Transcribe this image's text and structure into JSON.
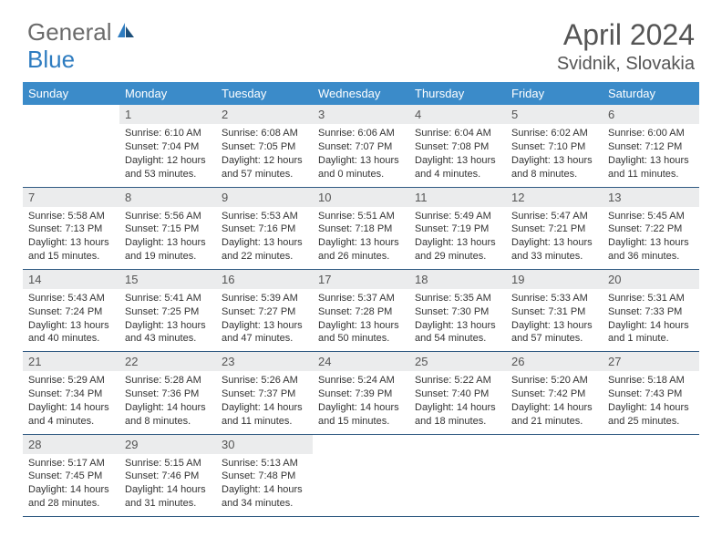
{
  "logo": {
    "text_gray": "General",
    "text_blue": "Blue"
  },
  "header": {
    "title": "April 2024",
    "location": "Svidnik, Slovakia"
  },
  "colors": {
    "header_bg": "#3b8bc9",
    "header_text": "#ffffff",
    "daynum_bg": "#ebeced",
    "border": "#305a82",
    "text": "#333333",
    "title_text": "#555555"
  },
  "day_names": [
    "Sunday",
    "Monday",
    "Tuesday",
    "Wednesday",
    "Thursday",
    "Friday",
    "Saturday"
  ],
  "weeks": [
    [
      {
        "empty": true
      },
      {
        "n": "1",
        "sr": "Sunrise: 6:10 AM",
        "ss": "Sunset: 7:04 PM",
        "dl": "Daylight: 12 hours and 53 minutes."
      },
      {
        "n": "2",
        "sr": "Sunrise: 6:08 AM",
        "ss": "Sunset: 7:05 PM",
        "dl": "Daylight: 12 hours and 57 minutes."
      },
      {
        "n": "3",
        "sr": "Sunrise: 6:06 AM",
        "ss": "Sunset: 7:07 PM",
        "dl": "Daylight: 13 hours and 0 minutes."
      },
      {
        "n": "4",
        "sr": "Sunrise: 6:04 AM",
        "ss": "Sunset: 7:08 PM",
        "dl": "Daylight: 13 hours and 4 minutes."
      },
      {
        "n": "5",
        "sr": "Sunrise: 6:02 AM",
        "ss": "Sunset: 7:10 PM",
        "dl": "Daylight: 13 hours and 8 minutes."
      },
      {
        "n": "6",
        "sr": "Sunrise: 6:00 AM",
        "ss": "Sunset: 7:12 PM",
        "dl": "Daylight: 13 hours and 11 minutes."
      }
    ],
    [
      {
        "n": "7",
        "sr": "Sunrise: 5:58 AM",
        "ss": "Sunset: 7:13 PM",
        "dl": "Daylight: 13 hours and 15 minutes."
      },
      {
        "n": "8",
        "sr": "Sunrise: 5:56 AM",
        "ss": "Sunset: 7:15 PM",
        "dl": "Daylight: 13 hours and 19 minutes."
      },
      {
        "n": "9",
        "sr": "Sunrise: 5:53 AM",
        "ss": "Sunset: 7:16 PM",
        "dl": "Daylight: 13 hours and 22 minutes."
      },
      {
        "n": "10",
        "sr": "Sunrise: 5:51 AM",
        "ss": "Sunset: 7:18 PM",
        "dl": "Daylight: 13 hours and 26 minutes."
      },
      {
        "n": "11",
        "sr": "Sunrise: 5:49 AM",
        "ss": "Sunset: 7:19 PM",
        "dl": "Daylight: 13 hours and 29 minutes."
      },
      {
        "n": "12",
        "sr": "Sunrise: 5:47 AM",
        "ss": "Sunset: 7:21 PM",
        "dl": "Daylight: 13 hours and 33 minutes."
      },
      {
        "n": "13",
        "sr": "Sunrise: 5:45 AM",
        "ss": "Sunset: 7:22 PM",
        "dl": "Daylight: 13 hours and 36 minutes."
      }
    ],
    [
      {
        "n": "14",
        "sr": "Sunrise: 5:43 AM",
        "ss": "Sunset: 7:24 PM",
        "dl": "Daylight: 13 hours and 40 minutes."
      },
      {
        "n": "15",
        "sr": "Sunrise: 5:41 AM",
        "ss": "Sunset: 7:25 PM",
        "dl": "Daylight: 13 hours and 43 minutes."
      },
      {
        "n": "16",
        "sr": "Sunrise: 5:39 AM",
        "ss": "Sunset: 7:27 PM",
        "dl": "Daylight: 13 hours and 47 minutes."
      },
      {
        "n": "17",
        "sr": "Sunrise: 5:37 AM",
        "ss": "Sunset: 7:28 PM",
        "dl": "Daylight: 13 hours and 50 minutes."
      },
      {
        "n": "18",
        "sr": "Sunrise: 5:35 AM",
        "ss": "Sunset: 7:30 PM",
        "dl": "Daylight: 13 hours and 54 minutes."
      },
      {
        "n": "19",
        "sr": "Sunrise: 5:33 AM",
        "ss": "Sunset: 7:31 PM",
        "dl": "Daylight: 13 hours and 57 minutes."
      },
      {
        "n": "20",
        "sr": "Sunrise: 5:31 AM",
        "ss": "Sunset: 7:33 PM",
        "dl": "Daylight: 14 hours and 1 minute."
      }
    ],
    [
      {
        "n": "21",
        "sr": "Sunrise: 5:29 AM",
        "ss": "Sunset: 7:34 PM",
        "dl": "Daylight: 14 hours and 4 minutes."
      },
      {
        "n": "22",
        "sr": "Sunrise: 5:28 AM",
        "ss": "Sunset: 7:36 PM",
        "dl": "Daylight: 14 hours and 8 minutes."
      },
      {
        "n": "23",
        "sr": "Sunrise: 5:26 AM",
        "ss": "Sunset: 7:37 PM",
        "dl": "Daylight: 14 hours and 11 minutes."
      },
      {
        "n": "24",
        "sr": "Sunrise: 5:24 AM",
        "ss": "Sunset: 7:39 PM",
        "dl": "Daylight: 14 hours and 15 minutes."
      },
      {
        "n": "25",
        "sr": "Sunrise: 5:22 AM",
        "ss": "Sunset: 7:40 PM",
        "dl": "Daylight: 14 hours and 18 minutes."
      },
      {
        "n": "26",
        "sr": "Sunrise: 5:20 AM",
        "ss": "Sunset: 7:42 PM",
        "dl": "Daylight: 14 hours and 21 minutes."
      },
      {
        "n": "27",
        "sr": "Sunrise: 5:18 AM",
        "ss": "Sunset: 7:43 PM",
        "dl": "Daylight: 14 hours and 25 minutes."
      }
    ],
    [
      {
        "n": "28",
        "sr": "Sunrise: 5:17 AM",
        "ss": "Sunset: 7:45 PM",
        "dl": "Daylight: 14 hours and 28 minutes."
      },
      {
        "n": "29",
        "sr": "Sunrise: 5:15 AM",
        "ss": "Sunset: 7:46 PM",
        "dl": "Daylight: 14 hours and 31 minutes."
      },
      {
        "n": "30",
        "sr": "Sunrise: 5:13 AM",
        "ss": "Sunset: 7:48 PM",
        "dl": "Daylight: 14 hours and 34 minutes."
      },
      {
        "empty": true
      },
      {
        "empty": true
      },
      {
        "empty": true
      },
      {
        "empty": true
      }
    ]
  ]
}
